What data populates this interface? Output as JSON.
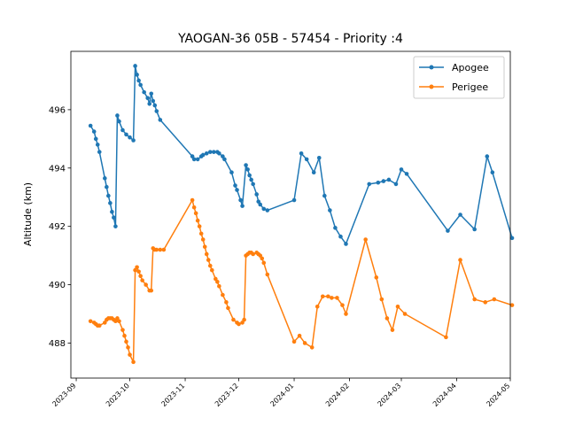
{
  "chart_data": {
    "type": "line",
    "title": "YAOGAN-36 05B - 57454 - Priority :4",
    "xlabel": "",
    "ylabel": "Altitude (km)",
    "x_ticks": [
      "2023-09",
      "2023-10",
      "2023-11",
      "2023-12",
      "2024-01",
      "2024-02",
      "2024-03",
      "2024-04",
      "2024-05"
    ],
    "y_ticks": [
      488,
      490,
      492,
      494,
      496
    ],
    "xlim": [
      "2023-08-29",
      "2024-05-01"
    ],
    "ylim": [
      486.8,
      498.0
    ],
    "legend_position": "top-right",
    "series": [
      {
        "name": "Apogee",
        "color": "#1f77b4",
        "points": [
          [
            "2023-09-09",
            495.45
          ],
          [
            "2023-09-11",
            495.25
          ],
          [
            "2023-09-12",
            495.0
          ],
          [
            "2023-09-13",
            494.8
          ],
          [
            "2023-09-14",
            494.55
          ],
          [
            "2023-09-17",
            493.65
          ],
          [
            "2023-09-18",
            493.35
          ],
          [
            "2023-09-19",
            493.05
          ],
          [
            "2023-09-20",
            492.8
          ],
          [
            "2023-09-21",
            492.5
          ],
          [
            "2023-09-22",
            492.3
          ],
          [
            "2023-09-23",
            492.0
          ],
          [
            "2023-09-24",
            495.8
          ],
          [
            "2023-09-25",
            495.6
          ],
          [
            "2023-09-27",
            495.3
          ],
          [
            "2023-09-29",
            495.15
          ],
          [
            "2023-10-01",
            495.05
          ],
          [
            "2023-10-03",
            494.95
          ],
          [
            "2023-10-04",
            497.5
          ],
          [
            "2023-10-05",
            497.2
          ],
          [
            "2023-10-06",
            497.0
          ],
          [
            "2023-10-07",
            496.85
          ],
          [
            "2023-10-09",
            496.6
          ],
          [
            "2023-10-11",
            496.4
          ],
          [
            "2023-10-12",
            496.2
          ],
          [
            "2023-10-13",
            496.55
          ],
          [
            "2023-10-14",
            496.3
          ],
          [
            "2023-10-15",
            496.15
          ],
          [
            "2023-10-16",
            495.95
          ],
          [
            "2023-10-18",
            495.65
          ],
          [
            "2023-11-05",
            494.4
          ],
          [
            "2023-11-06",
            494.3
          ],
          [
            "2023-11-08",
            494.3
          ],
          [
            "2023-11-10",
            494.4
          ],
          [
            "2023-11-11",
            494.45
          ],
          [
            "2023-11-13",
            494.5
          ],
          [
            "2023-11-15",
            494.55
          ],
          [
            "2023-11-17",
            494.55
          ],
          [
            "2023-11-19",
            494.55
          ],
          [
            "2023-11-20",
            494.5
          ],
          [
            "2023-11-22",
            494.4
          ],
          [
            "2023-11-23",
            494.3
          ],
          [
            "2023-11-27",
            493.85
          ],
          [
            "2023-11-29",
            493.4
          ],
          [
            "2023-11-30",
            493.25
          ],
          [
            "2023-12-02",
            492.9
          ],
          [
            "2023-12-03",
            492.7
          ],
          [
            "2023-12-05",
            494.1
          ],
          [
            "2023-12-06",
            493.95
          ],
          [
            "2023-12-07",
            493.75
          ],
          [
            "2023-12-08",
            493.6
          ],
          [
            "2023-12-09",
            493.45
          ],
          [
            "2023-12-11",
            493.1
          ],
          [
            "2023-12-12",
            492.85
          ],
          [
            "2023-12-13",
            492.75
          ],
          [
            "2023-12-15",
            492.6
          ],
          [
            "2023-12-17",
            492.55
          ],
          [
            "2024-01-01",
            492.9
          ],
          [
            "2024-01-05",
            494.5
          ],
          [
            "2024-01-08",
            494.3
          ],
          [
            "2024-01-12",
            493.85
          ],
          [
            "2024-01-15",
            494.35
          ],
          [
            "2024-01-18",
            493.05
          ],
          [
            "2024-01-21",
            492.55
          ],
          [
            "2024-01-24",
            491.95
          ],
          [
            "2024-01-27",
            491.65
          ],
          [
            "2024-01-30",
            491.4
          ],
          [
            "2024-02-12",
            493.45
          ],
          [
            "2024-02-17",
            493.5
          ],
          [
            "2024-02-20",
            493.55
          ],
          [
            "2024-02-23",
            493.6
          ],
          [
            "2024-02-27",
            493.45
          ],
          [
            "2024-03-01",
            493.95
          ],
          [
            "2024-03-04",
            493.8
          ],
          [
            "2024-03-27",
            491.85
          ],
          [
            "2024-04-03",
            492.4
          ],
          [
            "2024-04-11",
            491.9
          ],
          [
            "2024-04-18",
            494.4
          ],
          [
            "2024-04-21",
            493.85
          ],
          [
            "2024-05-02",
            491.6
          ]
        ]
      },
      {
        "name": "Perigee",
        "color": "#ff7f0e",
        "points": [
          [
            "2023-09-09",
            488.75
          ],
          [
            "2023-09-11",
            488.7
          ],
          [
            "2023-09-12",
            488.65
          ],
          [
            "2023-09-13",
            488.6
          ],
          [
            "2023-09-14",
            488.6
          ],
          [
            "2023-09-17",
            488.7
          ],
          [
            "2023-09-18",
            488.8
          ],
          [
            "2023-09-19",
            488.85
          ],
          [
            "2023-09-20",
            488.85
          ],
          [
            "2023-09-21",
            488.85
          ],
          [
            "2023-09-22",
            488.8
          ],
          [
            "2023-09-23",
            488.75
          ],
          [
            "2023-09-24",
            488.85
          ],
          [
            "2023-09-25",
            488.75
          ],
          [
            "2023-09-27",
            488.45
          ],
          [
            "2023-09-28",
            488.25
          ],
          [
            "2023-09-29",
            488.05
          ],
          [
            "2023-09-30",
            487.85
          ],
          [
            "2023-10-01",
            487.6
          ],
          [
            "2023-10-03",
            487.35
          ],
          [
            "2023-10-04",
            490.5
          ],
          [
            "2023-10-05",
            490.6
          ],
          [
            "2023-10-06",
            490.45
          ],
          [
            "2023-10-07",
            490.3
          ],
          [
            "2023-10-08",
            490.15
          ],
          [
            "2023-10-10",
            490.0
          ],
          [
            "2023-10-12",
            489.8
          ],
          [
            "2023-10-13",
            489.8
          ],
          [
            "2023-10-14",
            491.25
          ],
          [
            "2023-10-15",
            491.2
          ],
          [
            "2023-10-16",
            491.2
          ],
          [
            "2023-10-18",
            491.2
          ],
          [
            "2023-10-20",
            491.2
          ],
          [
            "2023-11-05",
            492.9
          ],
          [
            "2023-11-06",
            492.65
          ],
          [
            "2023-11-07",
            492.45
          ],
          [
            "2023-11-08",
            492.2
          ],
          [
            "2023-11-09",
            492.0
          ],
          [
            "2023-11-10",
            491.75
          ],
          [
            "2023-11-11",
            491.55
          ],
          [
            "2023-11-12",
            491.3
          ],
          [
            "2023-11-13",
            491.05
          ],
          [
            "2023-11-14",
            490.85
          ],
          [
            "2023-11-15",
            490.65
          ],
          [
            "2023-11-16",
            490.5
          ],
          [
            "2023-11-18",
            490.2
          ],
          [
            "2023-11-19",
            490.1
          ],
          [
            "2023-11-20",
            489.95
          ],
          [
            "2023-11-22",
            489.65
          ],
          [
            "2023-11-24",
            489.4
          ],
          [
            "2023-11-25",
            489.2
          ],
          [
            "2023-11-28",
            488.8
          ],
          [
            "2023-11-30",
            488.7
          ],
          [
            "2023-12-01",
            488.65
          ],
          [
            "2023-12-03",
            488.7
          ],
          [
            "2023-12-04",
            488.8
          ],
          [
            "2023-12-05",
            491.0
          ],
          [
            "2023-12-06",
            491.05
          ],
          [
            "2023-12-07",
            491.1
          ],
          [
            "2023-12-08",
            491.1
          ],
          [
            "2023-12-09",
            491.05
          ],
          [
            "2023-12-11",
            491.1
          ],
          [
            "2023-12-12",
            491.05
          ],
          [
            "2023-12-13",
            491.0
          ],
          [
            "2023-12-14",
            490.9
          ],
          [
            "2023-12-15",
            490.75
          ],
          [
            "2023-12-17",
            490.35
          ],
          [
            "2024-01-01",
            488.05
          ],
          [
            "2024-01-04",
            488.25
          ],
          [
            "2024-01-07",
            488.0
          ],
          [
            "2024-01-11",
            487.85
          ],
          [
            "2024-01-14",
            489.25
          ],
          [
            "2024-01-17",
            489.6
          ],
          [
            "2024-01-20",
            489.6
          ],
          [
            "2024-01-22",
            489.55
          ],
          [
            "2024-01-25",
            489.55
          ],
          [
            "2024-01-28",
            489.3
          ],
          [
            "2024-01-30",
            489.0
          ],
          [
            "2024-02-10",
            491.55
          ],
          [
            "2024-02-16",
            490.25
          ],
          [
            "2024-02-19",
            489.5
          ],
          [
            "2024-02-22",
            488.85
          ],
          [
            "2024-02-25",
            488.45
          ],
          [
            "2024-02-28",
            489.25
          ],
          [
            "2024-03-03",
            489.0
          ],
          [
            "2024-03-26",
            488.2
          ],
          [
            "2024-04-03",
            490.85
          ],
          [
            "2024-04-11",
            489.5
          ],
          [
            "2024-04-17",
            489.4
          ],
          [
            "2024-04-22",
            489.5
          ],
          [
            "2024-05-02",
            489.3
          ]
        ]
      }
    ]
  }
}
